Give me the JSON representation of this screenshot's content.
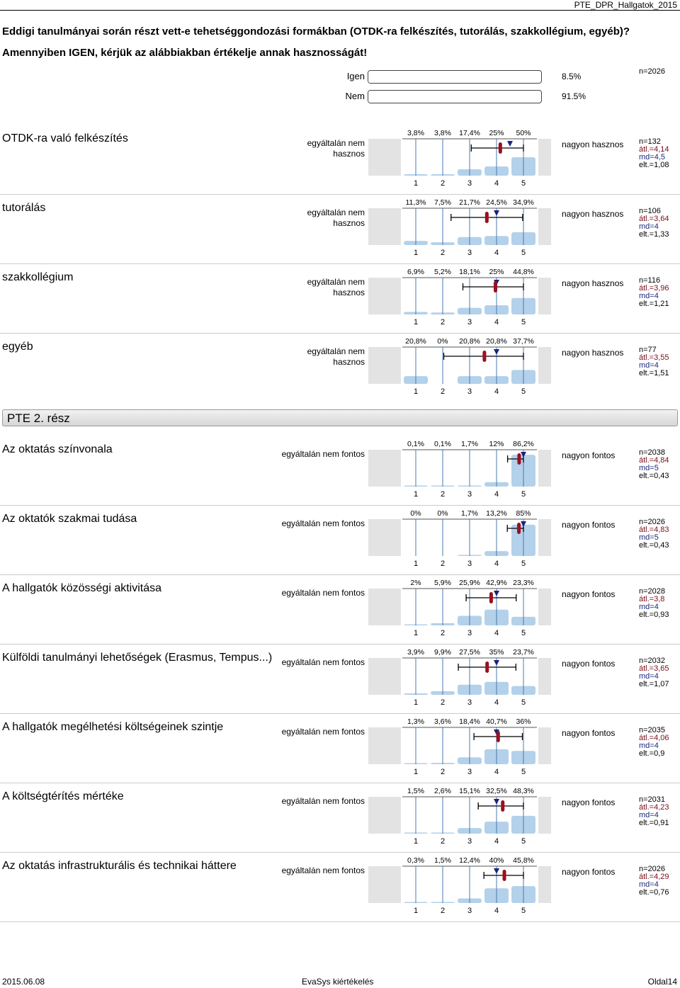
{
  "header": {
    "doc_id": "PTE_DPR_Hallgatok_2015"
  },
  "question": {
    "line1": "Eddigi tanulmányai során részt vett-e tehetséggondozási formákban (OTDK-ra felkészítés, tutorálás, szakkollégium, egyéb)?",
    "line2": "Amennyiben IGEN, kérjük az alábbiakban értékelje annak hasznosságát!",
    "yes_label": "Igen",
    "yes_pct": "8.5%",
    "yes_fraction": 0.085,
    "no_label": "Nem",
    "no_pct": "91.5%",
    "no_fraction": 0.915,
    "n": "n=2026"
  },
  "section_title": "PTE 2. rész",
  "items": [
    {
      "title": "OTDK-ra való felkészítés",
      "left": "egyáltalán nem hasznos",
      "right": "nagyon hasznos",
      "pct_labels": [
        "3,8%",
        "3,8%",
        "17,4%",
        "25%",
        "50%"
      ],
      "values": [
        3.8,
        3.8,
        17.4,
        25,
        50
      ],
      "mean": 4.14,
      "median": 4.5,
      "sd": 1.08,
      "n": "n=132",
      "avg": "átl.=4,14",
      "md": "md=4,5",
      "elt": "elt.=1,08"
    },
    {
      "title": "tutorálás",
      "left": "egyáltalán nem hasznos",
      "right": "nagyon hasznos",
      "pct_labels": [
        "11,3%",
        "7,5%",
        "21,7%",
        "24,5%",
        "34,9%"
      ],
      "values": [
        11.3,
        7.5,
        21.7,
        24.5,
        34.9
      ],
      "mean": 3.64,
      "median": 4,
      "sd": 1.33,
      "n": "n=106",
      "avg": "átl.=3,64",
      "md": "md=4",
      "elt": "elt.=1,33"
    },
    {
      "title": "szakkollégium",
      "left": "egyáltalán nem hasznos",
      "right": "nagyon hasznos",
      "pct_labels": [
        "6,9%",
        "5,2%",
        "18,1%",
        "25%",
        "44,8%"
      ],
      "values": [
        6.9,
        5.2,
        18.1,
        25,
        44.8
      ],
      "mean": 3.96,
      "median": 4,
      "sd": 1.21,
      "n": "n=116",
      "avg": "átl.=3,96",
      "md": "md=4",
      "elt": "elt.=1,21"
    },
    {
      "title": "egyéb",
      "left": "egyáltalán nem hasznos",
      "right": "nagyon hasznos",
      "pct_labels": [
        "20,8%",
        "0%",
        "20,8%",
        "20,8%",
        "37,7%"
      ],
      "values": [
        20.8,
        0,
        20.8,
        20.8,
        37.7
      ],
      "mean": 3.55,
      "median": 4,
      "sd": 1.51,
      "n": "n=77",
      "avg": "átl.=3,55",
      "md": "md=4",
      "elt": "elt.=1,51"
    },
    {
      "title": "Az oktatás színvonala",
      "left": "egyáltalán nem fontos",
      "right": "nagyon fontos",
      "pct_labels": [
        "0,1%",
        "0,1%",
        "1,7%",
        "12%",
        "86,2%"
      ],
      "values": [
        0.1,
        0.1,
        1.7,
        12,
        86.2
      ],
      "mean": 4.84,
      "median": 5,
      "sd": 0.43,
      "n": "n=2038",
      "avg": "átl.=4,84",
      "md": "md=5",
      "elt": "elt.=0,43"
    },
    {
      "title": "Az oktatók szakmai tudása",
      "left": "egyáltalán nem fontos",
      "right": "nagyon fontos",
      "pct_labels": [
        "0%",
        "0%",
        "1,7%",
        "13,2%",
        "85%"
      ],
      "values": [
        0,
        0,
        1.7,
        13.2,
        85
      ],
      "mean": 4.83,
      "median": 5,
      "sd": 0.43,
      "n": "n=2026",
      "avg": "átl.=4,83",
      "md": "md=5",
      "elt": "elt.=0,43"
    },
    {
      "title": "A hallgatók közösségi aktivitása",
      "left": "egyáltalán nem fontos",
      "right": "nagyon fontos",
      "pct_labels": [
        "2%",
        "5,9%",
        "25,9%",
        "42,9%",
        "23,3%"
      ],
      "values": [
        2,
        5.9,
        25.9,
        42.9,
        23.3
      ],
      "mean": 3.8,
      "median": 4,
      "sd": 0.93,
      "n": "n=2028",
      "avg": "átl.=3,8",
      "md": "md=4",
      "elt": "elt.=0,93"
    },
    {
      "title": "Külföldi tanulmányi lehetőségek (Erasmus, Tempus...)",
      "left": "egyáltalán nem fontos",
      "right": "nagyon fontos",
      "pct_labels": [
        "3,9%",
        "9,9%",
        "27,5%",
        "35%",
        "23,7%"
      ],
      "values": [
        3.9,
        9.9,
        27.5,
        35,
        23.7
      ],
      "mean": 3.65,
      "median": 4,
      "sd": 1.07,
      "n": "n=2032",
      "avg": "átl.=3,65",
      "md": "md=4",
      "elt": "elt.=1,07"
    },
    {
      "title": "A hallgatók megélhetési költségeinek szintje",
      "left": "egyáltalán nem fontos",
      "right": "nagyon fontos",
      "pct_labels": [
        "1,3%",
        "3,6%",
        "18,4%",
        "40,7%",
        "36%"
      ],
      "values": [
        1.3,
        3.6,
        18.4,
        40.7,
        36
      ],
      "mean": 4.06,
      "median": 4,
      "sd": 0.9,
      "n": "n=2035",
      "avg": "átl.=4,06",
      "md": "md=4",
      "elt": "elt.=0,9"
    },
    {
      "title": "A költségtérítés mértéke",
      "left": "egyáltalán nem fontos",
      "right": "nagyon fontos",
      "pct_labels": [
        "1,5%",
        "2,6%",
        "15,1%",
        "32,5%",
        "48,3%"
      ],
      "values": [
        1.5,
        2.6,
        15.1,
        32.5,
        48.3
      ],
      "mean": 4.23,
      "median": 4,
      "sd": 0.91,
      "n": "n=2031",
      "avg": "átl.=4,23",
      "md": "md=4",
      "elt": "elt.=0,91"
    },
    {
      "title": "Az oktatás infrastrukturális és technikai háttere",
      "left": "egyáltalán nem fontos",
      "right": "nagyon fontos",
      "pct_labels": [
        "0,3%",
        "1,5%",
        "12,4%",
        "40%",
        "45,8%"
      ],
      "values": [
        0.3,
        1.5,
        12.4,
        40,
        45.8
      ],
      "mean": 4.29,
      "median": 4,
      "sd": 0.76,
      "n": "n=2026",
      "avg": "átl.=4,29",
      "md": "md=4",
      "elt": "elt.=0,76"
    }
  ],
  "scale_labels": [
    "1",
    "2",
    "3",
    "4",
    "5"
  ],
  "footer": {
    "date": "2015.06.08",
    "center": "EvaSys kiértékelés",
    "page": "Oldal14"
  },
  "colors": {
    "bar": "#b3d1ea",
    "axis": "#4a78b0",
    "mean_marker": "#9a1020",
    "median_marker": "#1a237e",
    "panel": "#e3e3e3"
  }
}
